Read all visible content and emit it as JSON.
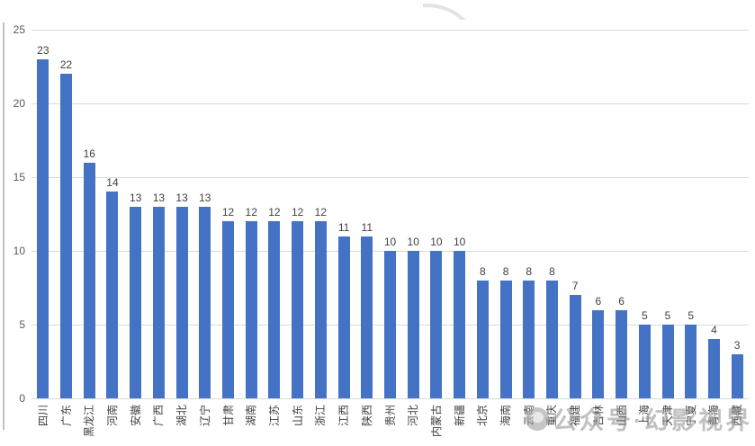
{
  "chart_data": {
    "type": "bar",
    "title": "",
    "xlabel": "",
    "ylabel": "",
    "categories": [
      "四川",
      "广东",
      "黑龙江",
      "河南",
      "安徽",
      "广西",
      "湖北",
      "辽宁",
      "甘肃",
      "湖南",
      "江苏",
      "山东",
      "浙江",
      "江西",
      "陕西",
      "贵州",
      "河北",
      "内蒙古",
      "新疆",
      "北京",
      "海南",
      "云南",
      "重庆",
      "福建",
      "吉林",
      "山西",
      "上海",
      "天津",
      "宁夏",
      "青海",
      "西藏"
    ],
    "values": [
      23,
      22,
      16,
      14,
      13,
      13,
      13,
      13,
      12,
      12,
      12,
      12,
      12,
      11,
      11,
      10,
      10,
      10,
      10,
      8,
      8,
      8,
      8,
      7,
      6,
      6,
      5,
      5,
      5,
      4,
      3
    ],
    "ylim": [
      0,
      25
    ],
    "yticks": [
      0,
      5,
      10,
      15,
      20,
      25
    ],
    "grid": true,
    "legend_position": "none",
    "data_labels_shown": true,
    "bar_color": "#4472C4",
    "gridline_color": "#d9d9d9",
    "axis_tick_color": "#595959",
    "value_label_color": "#3f3f3f"
  },
  "watermark": {
    "text": "公众号·幻影视界",
    "logo": "circle-logo",
    "color": "#969696"
  }
}
